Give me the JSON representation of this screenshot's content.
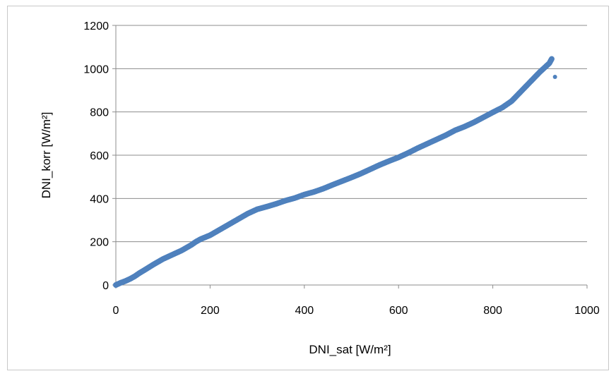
{
  "chart_data": {
    "type": "scatter",
    "xlabel": "DNI_sat [W/m²]",
    "ylabel": "DNI_korr [W/m²]",
    "xlim": [
      0,
      1000
    ],
    "ylim": [
      0,
      1200
    ],
    "x_ticks": [
      "0",
      "200",
      "400",
      "600",
      "800",
      "1000"
    ],
    "y_ticks": [
      "0",
      "200",
      "400",
      "600",
      "800",
      "1000",
      "1200"
    ],
    "grid": "horizontal",
    "legend": "none",
    "marker_color": "#4f81bd",
    "series": [
      {
        "x": [
          0,
          5,
          10,
          20,
          30,
          40,
          50,
          60,
          80,
          100,
          120,
          140,
          160,
          170,
          180,
          200,
          220,
          240,
          260,
          280,
          300,
          320,
          340,
          360,
          380,
          400,
          420,
          440,
          460,
          480,
          500,
          520,
          540,
          560,
          580,
          600,
          620,
          640,
          660,
          680,
          700,
          720,
          740,
          760,
          780,
          800,
          820,
          840,
          860,
          880,
          900,
          910,
          920,
          925
        ],
        "y": [
          0,
          5,
          10,
          18,
          28,
          40,
          55,
          68,
          95,
          120,
          140,
          160,
          185,
          200,
          212,
          230,
          255,
          280,
          305,
          330,
          350,
          362,
          375,
          390,
          402,
          418,
          430,
          445,
          463,
          480,
          497,
          515,
          535,
          555,
          573,
          590,
          610,
          632,
          652,
          672,
          692,
          715,
          732,
          752,
          775,
          798,
          820,
          850,
          895,
          940,
          985,
          1005,
          1025,
          1045
        ]
      },
      {
        "x": [
          932
        ],
        "y": [
          962
        ]
      }
    ]
  }
}
